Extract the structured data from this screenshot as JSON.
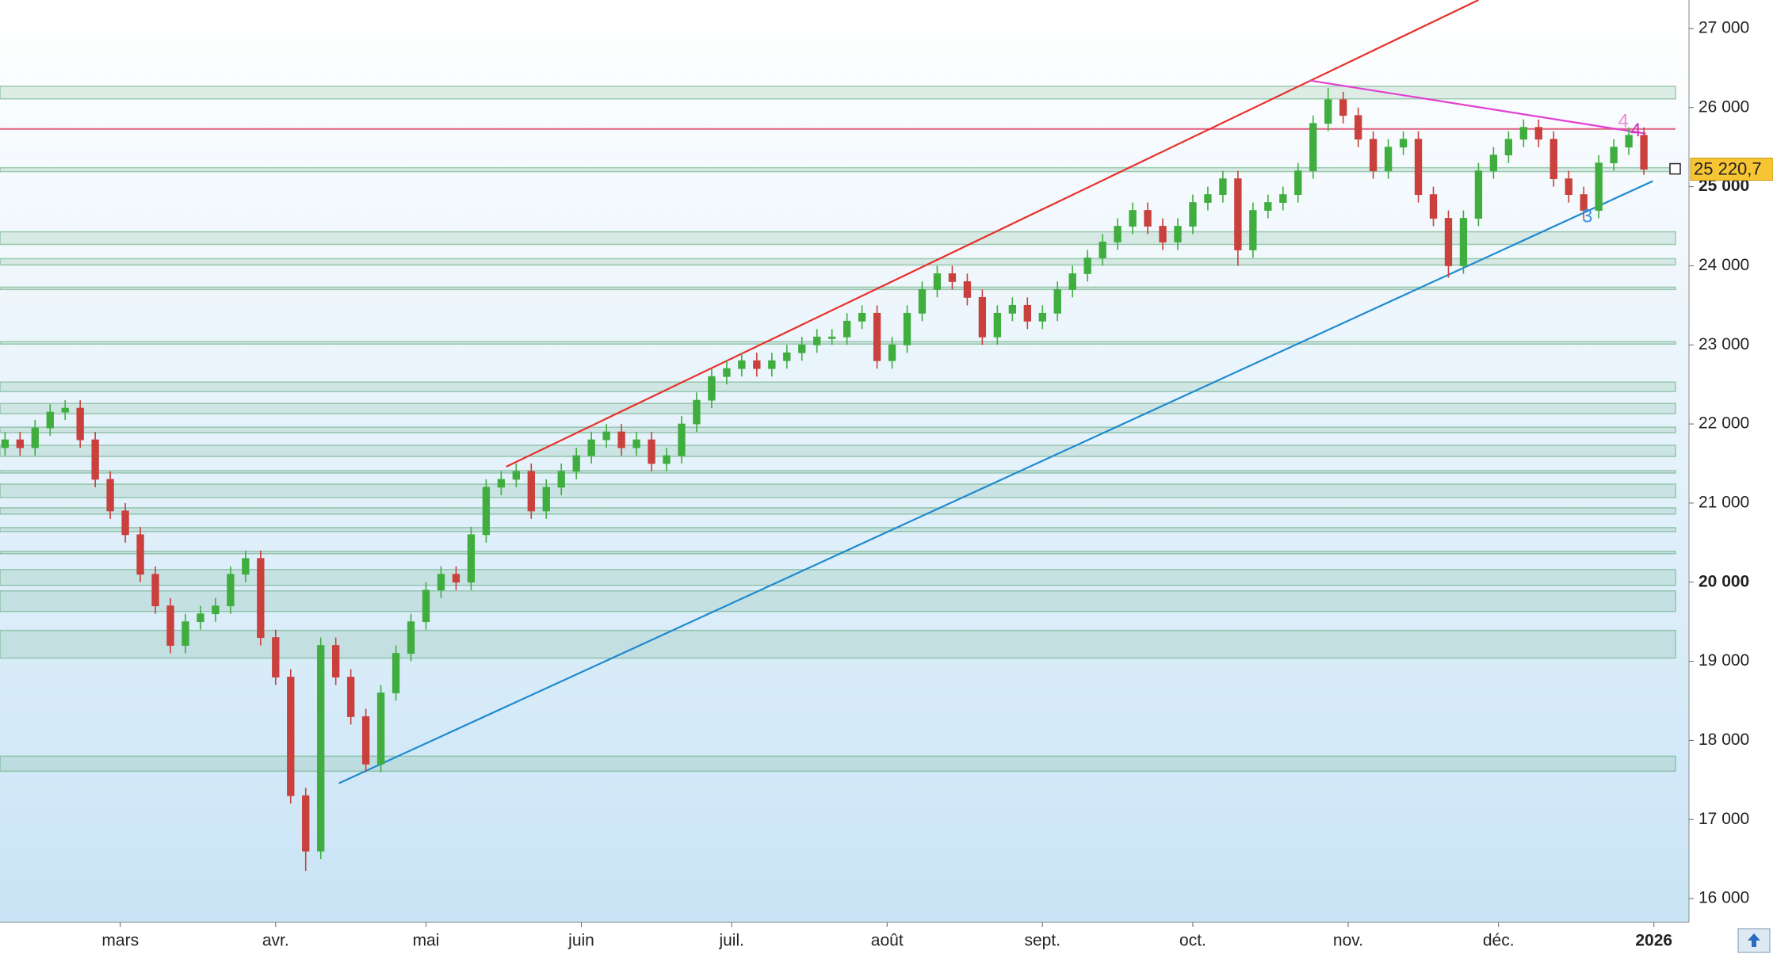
{
  "chart_data": {
    "type": "candlestick",
    "xlim": [
      35,
      372
    ],
    "ylim": [
      15700,
      27360
    ],
    "xticks": [
      {
        "value": 59,
        "label": "mars"
      },
      {
        "value": 90,
        "label": "avr."
      },
      {
        "value": 120,
        "label": "mai"
      },
      {
        "value": 151,
        "label": "juin"
      },
      {
        "value": 181,
        "label": "juil."
      },
      {
        "value": 212,
        "label": "août"
      },
      {
        "value": 243,
        "label": "sept."
      },
      {
        "value": 273,
        "label": "oct."
      },
      {
        "value": 304,
        "label": "nov."
      },
      {
        "value": 334,
        "label": "déc."
      },
      {
        "value": 365,
        "label": "2026",
        "bold": true
      }
    ],
    "yticks": [
      {
        "value": 16000,
        "label": "16 000"
      },
      {
        "value": 17000,
        "label": "17 000"
      },
      {
        "value": 18000,
        "label": "18 000"
      },
      {
        "value": 19000,
        "label": "19 000"
      },
      {
        "value": 20000,
        "label": "20 000",
        "bold": true
      },
      {
        "value": 21000,
        "label": "21 000"
      },
      {
        "value": 22000,
        "label": "22 000"
      },
      {
        "value": 23000,
        "label": "23 000"
      },
      {
        "value": 24000,
        "label": "24 000"
      },
      {
        "value": 25000,
        "label": "25 000",
        "bold": true
      },
      {
        "value": 26000,
        "label": "26 000"
      },
      {
        "value": 27000,
        "label": "27 000"
      }
    ],
    "up_color": "#3fae3f",
    "down_color": "#c9403c",
    "x": [
      36,
      39,
      42,
      45,
      48,
      51,
      54,
      57,
      60,
      63,
      66,
      69,
      72,
      75,
      78,
      81,
      84,
      87,
      90,
      93,
      96,
      99,
      102,
      105,
      108,
      111,
      114,
      117,
      120,
      123,
      126,
      129,
      132,
      135,
      138,
      141,
      144,
      147,
      150,
      153,
      156,
      159,
      162,
      165,
      168,
      171,
      174,
      177,
      180,
      183,
      186,
      189,
      192,
      195,
      198,
      201,
      204,
      207,
      210,
      213,
      216,
      219,
      222,
      225,
      228,
      231,
      234,
      237,
      240,
      243,
      246,
      249,
      252,
      255,
      258,
      261,
      264,
      267,
      270,
      273,
      276,
      279,
      282,
      285,
      288,
      291,
      294,
      297,
      300,
      303,
      306,
      309,
      312,
      315,
      318,
      321,
      324,
      327,
      330,
      333,
      336,
      339,
      342,
      345,
      348,
      351,
      354,
      357,
      360,
      363
    ],
    "open": [
      21700,
      21800,
      21700,
      21950,
      22150,
      22200,
      21800,
      21300,
      20900,
      20600,
      20100,
      19700,
      19200,
      19500,
      19600,
      19700,
      20100,
      20300,
      19300,
      18800,
      17300,
      16600,
      19200,
      18800,
      18300,
      17700,
      18600,
      19100,
      19500,
      19900,
      20100,
      20000,
      20600,
      21200,
      21300,
      21400,
      20900,
      21200,
      21400,
      21600,
      21800,
      21900,
      21700,
      21800,
      21500,
      21600,
      22000,
      22300,
      22600,
      22700,
      22800,
      22700,
      22800,
      22900,
      23000,
      23100,
      23100,
      23300,
      23400,
      22800,
      23000,
      23400,
      23700,
      23900,
      23800,
      23600,
      23100,
      23400,
      23500,
      23300,
      23400,
      23700,
      23900,
      24100,
      24300,
      24500,
      24700,
      24500,
      24300,
      24500,
      24800,
      24900,
      25100,
      24200,
      24700,
      24800,
      24900,
      25200,
      25800,
      26100,
      25900,
      25600,
      25200,
      25500,
      25600,
      24900,
      24600,
      24000,
      24600,
      25200,
      25400,
      25600,
      25750,
      25600,
      25100,
      24900,
      24700,
      25300,
      25500,
      25650
    ],
    "high": [
      21900,
      21900,
      22050,
      22250,
      22300,
      22300,
      21900,
      21400,
      21000,
      20700,
      20200,
      19800,
      19600,
      19700,
      19800,
      20200,
      20400,
      20400,
      19400,
      18900,
      17400,
      19300,
      19300,
      18900,
      18400,
      18700,
      19200,
      19600,
      20000,
      20200,
      20200,
      20700,
      21300,
      21400,
      21500,
      21500,
      21300,
      21500,
      21700,
      21900,
      22000,
      22000,
      21900,
      21900,
      21700,
      22100,
      22400,
      22700,
      22800,
      22900,
      22900,
      22900,
      23000,
      23100,
      23200,
      23200,
      23400,
      23500,
      23500,
      23100,
      23500,
      23800,
      24000,
      24000,
      23900,
      23700,
      23500,
      23600,
      23600,
      23500,
      23800,
      24000,
      24200,
      24400,
      24600,
      24800,
      24800,
      24600,
      24600,
      24900,
      25000,
      25200,
      25200,
      24800,
      24900,
      25000,
      25300,
      25900,
      26250,
      26200,
      26000,
      25700,
      25600,
      25700,
      25700,
      25000,
      24700,
      24700,
      25300,
      25500,
      25700,
      25850,
      25850,
      25700,
      25200,
      25000,
      25400,
      25600,
      25750,
      25750
    ],
    "low": [
      21600,
      21600,
      21600,
      21850,
      22050,
      21700,
      21200,
      20800,
      20500,
      20000,
      19600,
      19100,
      19100,
      19400,
      19500,
      19600,
      20000,
      19200,
      18700,
      17200,
      16350,
      16500,
      18700,
      18200,
      17600,
      17600,
      18500,
      19000,
      19400,
      19800,
      19900,
      19900,
      20500,
      21100,
      21200,
      20800,
      20800,
      21100,
      21300,
      21500,
      21700,
      21600,
      21600,
      21400,
      21400,
      21500,
      21900,
      22200,
      22500,
      22600,
      22600,
      22600,
      22700,
      22800,
      22900,
      23000,
      23000,
      23200,
      22700,
      22700,
      22900,
      23300,
      23600,
      23700,
      23500,
      23000,
      23000,
      23300,
      23200,
      23200,
      23300,
      23600,
      23800,
      24000,
      24200,
      24400,
      24400,
      24200,
      24200,
      24400,
      24700,
      24800,
      24000,
      24100,
      24600,
      24700,
      24800,
      25100,
      25700,
      25800,
      25500,
      25100,
      25100,
      25400,
      24800,
      24500,
      23850,
      23900,
      24500,
      25100,
      25300,
      25500,
      25500,
      25000,
      24800,
      24600,
      24600,
      25200,
      25400,
      25150
    ],
    "close": [
      21800,
      21700,
      21950,
      22150,
      22200,
      21800,
      21300,
      20900,
      20600,
      20100,
      19700,
      19200,
      19500,
      19600,
      19700,
      20100,
      20300,
      19300,
      18800,
      17300,
      16600,
      19200,
      18800,
      18300,
      17700,
      18600,
      19100,
      19500,
      19900,
      20100,
      20000,
      20600,
      21200,
      21300,
      21400,
      20900,
      21200,
      21400,
      21600,
      21800,
      21900,
      21700,
      21800,
      21500,
      21600,
      22000,
      22300,
      22600,
      22700,
      22800,
      22700,
      22800,
      22900,
      23000,
      23100,
      23100,
      23300,
      23400,
      22800,
      23000,
      23400,
      23700,
      23900,
      23800,
      23600,
      23100,
      23400,
      23500,
      23300,
      23400,
      23700,
      23900,
      24100,
      24300,
      24500,
      24700,
      24500,
      24300,
      24500,
      24800,
      24900,
      25100,
      24200,
      24700,
      24800,
      24900,
      25200,
      25800,
      26100,
      25900,
      25600,
      25200,
      25500,
      25600,
      24900,
      24600,
      24000,
      24600,
      25200,
      25400,
      25600,
      25750,
      25600,
      25100,
      24900,
      24700,
      25300,
      25500,
      25650,
      25220.7
    ],
    "last_price": {
      "value": 25220.7,
      "label": "25 220,7"
    },
    "zone_color": "#5fa878",
    "zones": [
      [
        26110,
        26270
      ],
      [
        25190,
        25240
      ],
      [
        24270,
        24430
      ],
      [
        24010,
        24090
      ],
      [
        23700,
        23730
      ],
      [
        23010,
        23040
      ],
      [
        22410,
        22530
      ],
      [
        22130,
        22260
      ],
      [
        21890,
        21960
      ],
      [
        21590,
        21730
      ],
      [
        21380,
        21410
      ],
      [
        21070,
        21240
      ],
      [
        20860,
        20940
      ],
      [
        20640,
        20690
      ],
      [
        20360,
        20390
      ],
      [
        19960,
        20160
      ],
      [
        19630,
        19890
      ],
      [
        19040,
        19390
      ],
      [
        17610,
        17800
      ]
    ],
    "resistance": {
      "value": 25730,
      "color": "#e06080"
    },
    "trendlines": [
      {
        "color": "#e8302a",
        "x": [
          136,
          330
        ],
        "y": [
          21460,
          27360
        ]
      },
      {
        "color": "#1f8ad0",
        "x": [
          102.6,
          364.8
        ],
        "y": [
          17457,
          25071
        ]
      },
      {
        "color": "#e23fd0",
        "x": [
          296.3,
          363.4
        ],
        "y": [
          26343,
          25671
        ]
      }
    ],
    "annotations": [
      {
        "text": "3",
        "x": 351.7,
        "y": 24614,
        "color": "#3a90e0"
      },
      {
        "text": "4",
        "x": 358.9,
        "y": 25814,
        "color": "#f08ad8"
      },
      {
        "text": "4",
        "x": 361.4,
        "y": 25700,
        "color": "#d030c0"
      }
    ]
  }
}
